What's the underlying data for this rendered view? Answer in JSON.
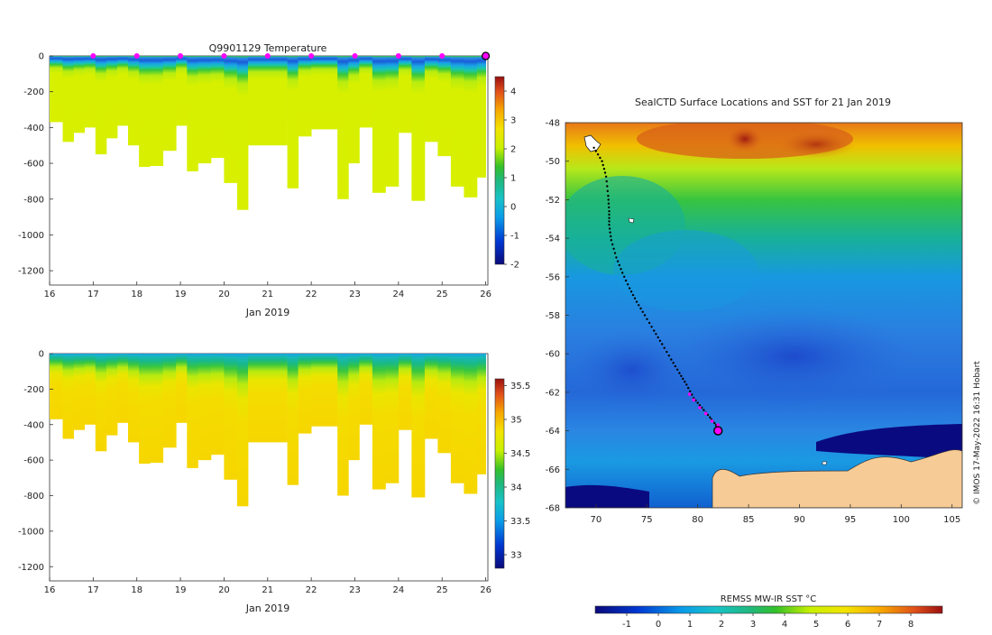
{
  "chart_data": [
    {
      "type": "heatmap",
      "title": "Q9901129  Temperature",
      "xlabel": "Jan 2019",
      "ylabel": "",
      "xlim": [
        16,
        26.05
      ],
      "ylim": [
        -1280,
        0
      ],
      "x_ticks": [
        16,
        17,
        18,
        19,
        20,
        21,
        22,
        23,
        24,
        25,
        26
      ],
      "y_ticks": [
        0,
        -200,
        -400,
        -600,
        -800,
        -1000,
        -1200
      ],
      "colorbar": {
        "min": -2,
        "max": 4.5,
        "ticks": [
          -2,
          -1,
          0,
          1,
          2,
          3,
          4
        ],
        "label": ""
      },
      "surface_markers_day": [
        17,
        18,
        19,
        20,
        21,
        22,
        23,
        24,
        25
      ],
      "current_marker_day": 26,
      "profile_starts": [
        16.0,
        16.3,
        16.55,
        16.8,
        17.05,
        17.3,
        17.55,
        17.8,
        18.05,
        18.3,
        18.6,
        18.9,
        19.15,
        19.4,
        19.7,
        20.0,
        20.3,
        20.55,
        20.85,
        21.1,
        21.45,
        21.7,
        22.0,
        22.25,
        22.6,
        22.85,
        23.1,
        23.4,
        23.7,
        24.0,
        24.3,
        24.6,
        24.9,
        25.2,
        25.5,
        25.8
      ],
      "profile_max_depth": [
        370,
        480,
        430,
        400,
        550,
        460,
        390,
        500,
        620,
        615,
        530,
        390,
        645,
        600,
        570,
        710,
        860,
        500,
        500,
        500,
        740,
        450,
        410,
        410,
        800,
        600,
        400,
        765,
        730,
        430,
        810,
        480,
        560,
        730,
        790,
        680
      ]
    },
    {
      "type": "heatmap",
      "title": "",
      "xlabel": "Jan 2019",
      "ylabel": "",
      "xlim": [
        16,
        26.05
      ],
      "ylim": [
        -1280,
        0
      ],
      "x_ticks": [
        16,
        17,
        18,
        19,
        20,
        21,
        22,
        23,
        24,
        25,
        26
      ],
      "y_ticks": [
        0,
        -200,
        -400,
        -600,
        -800,
        -1000,
        -1200
      ],
      "colorbar": {
        "min": 32.8,
        "max": 35.6,
        "ticks": [
          33,
          33.5,
          34,
          34.5,
          35,
          35.5
        ],
        "label": ""
      },
      "profile_starts": [
        16.0,
        16.3,
        16.55,
        16.8,
        17.05,
        17.3,
        17.55,
        17.8,
        18.05,
        18.3,
        18.6,
        18.9,
        19.15,
        19.4,
        19.7,
        20.0,
        20.3,
        20.55,
        20.85,
        21.1,
        21.45,
        21.7,
        22.0,
        22.25,
        22.6,
        22.85,
        23.1,
        23.4,
        23.7,
        24.0,
        24.3,
        24.6,
        24.9,
        25.2,
        25.5,
        25.8
      ],
      "profile_max_depth": [
        370,
        480,
        430,
        400,
        550,
        460,
        390,
        500,
        620,
        615,
        530,
        390,
        645,
        600,
        570,
        710,
        860,
        500,
        500,
        500,
        740,
        450,
        410,
        410,
        800,
        600,
        400,
        765,
        730,
        430,
        810,
        480,
        560,
        730,
        790,
        680
      ]
    },
    {
      "type": "map",
      "title": "SealCTD Surface Locations and SST for 21 Jan 2019",
      "xlabel": "",
      "ylabel": "",
      "xlim": [
        67,
        106
      ],
      "ylim": [
        -68,
        -48
      ],
      "x_ticks": [
        70,
        75,
        80,
        85,
        90,
        95,
        100,
        105
      ],
      "y_ticks": [
        -48,
        -50,
        -52,
        -54,
        -56,
        -58,
        -60,
        -62,
        -64,
        -66,
        -68
      ],
      "colorbar": {
        "label": "REMSS MW-IR SST °C",
        "min": -2,
        "max": 9,
        "ticks": [
          -1,
          0,
          1,
          2,
          3,
          4,
          5,
          6,
          7,
          8
        ]
      },
      "track_lon": [
        69.8,
        70.6,
        71.0,
        71.2,
        71.3,
        71.3,
        71.5,
        72.0,
        72.6,
        73.3,
        74.0,
        74.8,
        75.7,
        76.5,
        77.4,
        78.2,
        78.9,
        79.6,
        80.4,
        81.2,
        81.8,
        82.0
      ],
      "track_lat": [
        -49.3,
        -50.0,
        -50.8,
        -51.8,
        -52.6,
        -53.3,
        -54.1,
        -55.0,
        -55.8,
        -56.6,
        -57.3,
        -58.0,
        -58.8,
        -59.5,
        -60.3,
        -61.0,
        -61.6,
        -62.3,
        -62.8,
        -63.3,
        -63.7,
        -64.0
      ],
      "recent_positions_lon": [
        79.2,
        79.6,
        80.2,
        80.8,
        81.4,
        82.0
      ],
      "recent_positions_lat": [
        -62.1,
        -62.4,
        -62.8,
        -63.1,
        -63.5,
        -63.7
      ],
      "current_position": {
        "lon": 82.0,
        "lat": -64.0
      },
      "credit": "© IMOS 17-May-2022 16:31 Hobart"
    }
  ]
}
